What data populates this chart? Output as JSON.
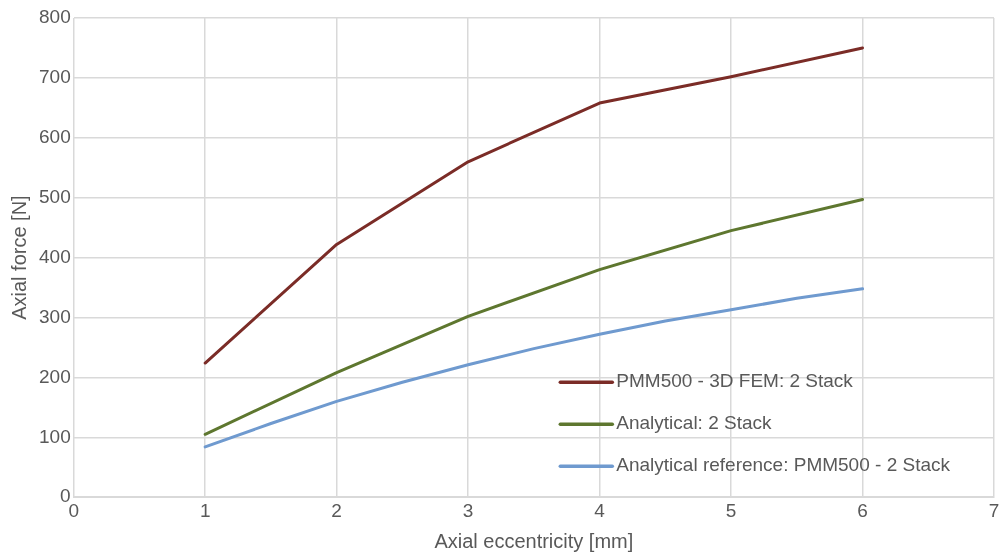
{
  "chart_data": {
    "type": "line",
    "xlabel": "Axial eccentricity [mm]",
    "ylabel": "Axial force [N]",
    "xlim": [
      0,
      7
    ],
    "xticks": [
      0,
      1,
      2,
      3,
      4,
      5,
      6,
      7
    ],
    "ylim": [
      0,
      800
    ],
    "yticks": [
      0,
      100,
      200,
      300,
      400,
      500,
      600,
      700,
      800
    ],
    "grid": true,
    "legend": "bottom right",
    "marker": "none",
    "line_style": "solid",
    "series": [
      {
        "name": "PMM500 - 3D FEM: 2 Stack",
        "color": "#7b2c27",
        "x": [
          1,
          2,
          3,
          4,
          5,
          6
        ],
        "values": [
          224,
          422,
          560,
          658,
          702,
          750
        ]
      },
      {
        "name": "Analytical: 2 Stack",
        "color": "#5e772f",
        "x": [
          1,
          2,
          3,
          4,
          5,
          6
        ],
        "values": [
          105,
          208,
          302,
          380,
          445,
          497
        ]
      },
      {
        "name": "Analytical reference: PMM500 - 2 Stack",
        "color": "#6f9acf",
        "x": [
          1,
          1.5,
          2,
          2.5,
          3,
          3.5,
          4,
          4.5,
          5,
          5.5,
          6
        ],
        "values": [
          84,
          123,
          160,
          192,
          221,
          248,
          272,
          294,
          313,
          332,
          348
        ]
      }
    ]
  }
}
